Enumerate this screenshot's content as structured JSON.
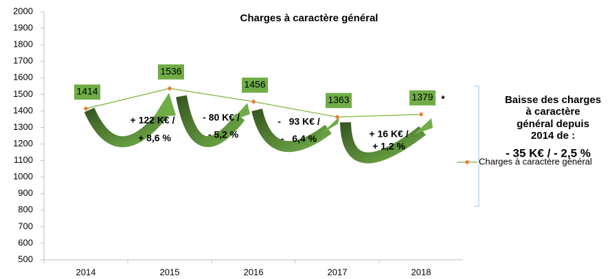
{
  "chart_data": {
    "type": "line",
    "title": "Charges à caractère général",
    "categories": [
      "2014",
      "2015",
      "2016",
      "2017",
      "2018"
    ],
    "series": [
      {
        "name": "Charges à caractère général",
        "color": "#8cc152",
        "marker_color": "#ed7d31",
        "label_box_color": "#70ad47",
        "values": [
          1414,
          1536,
          1456,
          1363,
          1379
        ]
      }
    ],
    "ylim": [
      500,
      2000
    ],
    "yticks": [
      500,
      600,
      700,
      800,
      900,
      1000,
      1100,
      1200,
      1300,
      1400,
      1500,
      1600,
      1700,
      1800,
      1900,
      2000
    ],
    "grid": false,
    "legend": "right",
    "annotations": [
      "+ 122 K€ /",
      "+ 8,6 %",
      "- 80 K€ /",
      "- 5,2 %",
      "-   93 K€ /",
      "-   6,4 %",
      "+ 16 K€ /",
      "+ 1,2 %",
      "*"
    ],
    "side_note": [
      "Baisse des charges",
      "à caractère",
      "général depuis",
      "2014 de :"
    ],
    "side_total": "- 35 K€ / - 2,5 %"
  }
}
